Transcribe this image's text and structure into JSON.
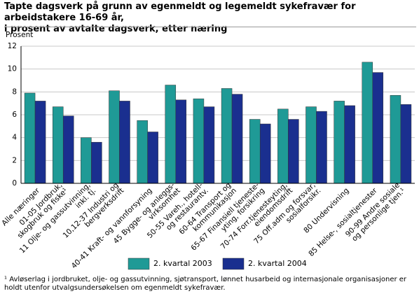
{
  "chart_data": {
    "type": "bar",
    "title": "Tapte dagsverk på grunn av egenmeldt og legemeldt sykefravær for arbeidstakere 16-69 år,\ni prosent av avtalte dagsverk, etter næring",
    "y_label": "Prosent",
    "categories": [
      "Alle næringer",
      "01-05 Jordbruk,\nskogbruk og fiske¹",
      "11 Olje- og gassutvinning,\ninkl. tj.",
      "10,12-37 Industri og\nbergverksdrift",
      "40-41 Kraft- og vannforsyning",
      "45 Bygge- og anleggs-\nvirksomhet",
      "50-55 Vareh., hotell-\nog restaurantv.",
      "60-64 Transport og\nkommunikasjon",
      "65-67 Finansiell tjeneste-\nyting, forsikring",
      "70-74 Forr.tjenesteyting,\neiendomsdrift",
      "75 Off.adm og forsvar,\nsosialforsikr.",
      "80 Undervisning",
      "85 Helse-, sosialtjenester",
      "90-99 Andre sosiale\nog personlige tjen.¹"
    ],
    "series": [
      {
        "name": "2. kvartal 2003",
        "color": "#1f9a96",
        "values": [
          7.9,
          6.7,
          4.0,
          8.1,
          5.5,
          8.6,
          7.4,
          8.3,
          5.6,
          6.5,
          6.7,
          7.2,
          10.6,
          7.7
        ]
      },
      {
        "name": "2. kvartal 2004",
        "color": "#1a2f8f",
        "values": [
          7.2,
          5.9,
          3.6,
          7.2,
          4.5,
          7.3,
          6.7,
          7.8,
          5.2,
          5.6,
          6.3,
          6.8,
          9.7,
          6.9
        ]
      }
    ],
    "ylim": [
      0,
      12
    ],
    "yticks": [
      0,
      2,
      4,
      6,
      8,
      10,
      12
    ],
    "grid": true,
    "footnote": "¹ Avløserlag i jordbruket, olje- og gassutvinning, sjøtransport, lønnet husarbeid og internasjonale organisasjoner er holdt utenfor utvalgsundersøkelsen om egenmeldt sykefravær."
  }
}
